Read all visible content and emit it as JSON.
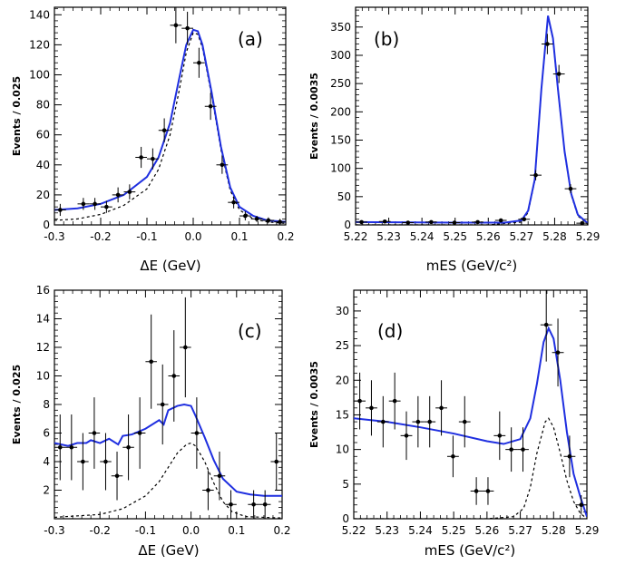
{
  "colors": {
    "fit": "#1f2fe0",
    "signal": "#000000",
    "points": "#000000"
  },
  "chart_data": [
    {
      "type": "scatter",
      "panel_label": "(a)",
      "xlabel": "ΔE (GeV)",
      "ylabel": "Events / 0.025",
      "xlim": [
        -0.3,
        0.2
      ],
      "ylim": [
        0,
        145
      ],
      "xticks": [
        -0.3,
        -0.2,
        -0.1,
        0.0,
        0.1,
        0.2
      ],
      "xtick_labels": [
        "-0.3",
        "-0.2",
        "-0.1",
        "0.0",
        "0.1",
        "0.2"
      ],
      "yticks": [
        0,
        20,
        40,
        60,
        80,
        100,
        120,
        140
      ],
      "ytick_labels": [
        "0",
        "20",
        "40",
        "60",
        "80",
        "100",
        "120",
        "140"
      ],
      "points": [
        {
          "x": -0.2875,
          "y": 10,
          "err": 4
        },
        {
          "x": -0.2375,
          "y": 14,
          "err": 4
        },
        {
          "x": -0.2125,
          "y": 14,
          "err": 4
        },
        {
          "x": -0.1875,
          "y": 12,
          "err": 4
        },
        {
          "x": -0.1625,
          "y": 20,
          "err": 5
        },
        {
          "x": -0.1375,
          "y": 22,
          "err": 5
        },
        {
          "x": -0.1125,
          "y": 45,
          "err": 7
        },
        {
          "x": -0.0875,
          "y": 44,
          "err": 7
        },
        {
          "x": -0.0625,
          "y": 63,
          "err": 8
        },
        {
          "x": -0.0375,
          "y": 133,
          "err": 12
        },
        {
          "x": -0.0125,
          "y": 131,
          "err": 11
        },
        {
          "x": 0.0125,
          "y": 108,
          "err": 10
        },
        {
          "x": 0.0375,
          "y": 79,
          "err": 9
        },
        {
          "x": 0.0625,
          "y": 40,
          "err": 6
        },
        {
          "x": 0.0875,
          "y": 15,
          "err": 4
        },
        {
          "x": 0.1125,
          "y": 6,
          "err": 3
        },
        {
          "x": 0.1375,
          "y": 4,
          "err": 2
        },
        {
          "x": 0.1625,
          "y": 3,
          "err": 2
        },
        {
          "x": 0.1875,
          "y": 2,
          "err": 2
        }
      ],
      "fit_curve": [
        [
          -0.3,
          10
        ],
        [
          -0.25,
          11
        ],
        [
          -0.2,
          14
        ],
        [
          -0.15,
          20
        ],
        [
          -0.1,
          32
        ],
        [
          -0.075,
          45
        ],
        [
          -0.05,
          68
        ],
        [
          -0.03,
          98
        ],
        [
          -0.015,
          120
        ],
        [
          0.0,
          130
        ],
        [
          0.01,
          129
        ],
        [
          0.02,
          120
        ],
        [
          0.04,
          88
        ],
        [
          0.06,
          52
        ],
        [
          0.08,
          25
        ],
        [
          0.1,
          12
        ],
        [
          0.13,
          6
        ],
        [
          0.16,
          3
        ],
        [
          0.2,
          2
        ]
      ],
      "signal_curve": [
        [
          -0.3,
          3
        ],
        [
          -0.25,
          4
        ],
        [
          -0.2,
          7
        ],
        [
          -0.15,
          13
        ],
        [
          -0.1,
          24
        ],
        [
          -0.075,
          37
        ],
        [
          -0.05,
          60
        ],
        [
          -0.03,
          90
        ],
        [
          -0.015,
          115
        ],
        [
          0.0,
          128
        ],
        [
          0.01,
          127
        ],
        [
          0.02,
          118
        ],
        [
          0.04,
          86
        ],
        [
          0.06,
          50
        ],
        [
          0.08,
          23
        ],
        [
          0.1,
          10
        ],
        [
          0.13,
          4
        ],
        [
          0.16,
          2
        ],
        [
          0.2,
          1
        ]
      ]
    },
    {
      "type": "scatter",
      "panel_label": "(b)",
      "xlabel": "mES (GeV/c²)",
      "ylabel": "Events / 0.0035",
      "xlim": [
        5.22,
        5.29
      ],
      "ylim": [
        0,
        385
      ],
      "xticks": [
        5.22,
        5.23,
        5.24,
        5.25,
        5.26,
        5.27,
        5.28,
        5.29
      ],
      "xtick_labels": [
        "5.22",
        "5.23",
        "5.24",
        "5.25",
        "5.26",
        "5.27",
        "5.28",
        "5.29"
      ],
      "yticks": [
        0,
        50,
        100,
        150,
        200,
        250,
        300,
        350
      ],
      "ytick_labels": [
        "0",
        "50",
        "100",
        "150",
        "200",
        "250",
        "300",
        "350"
      ],
      "points": [
        {
          "x": 5.2218,
          "y": 5,
          "err": 2
        },
        {
          "x": 5.2288,
          "y": 6,
          "err": 2
        },
        {
          "x": 5.2358,
          "y": 4,
          "err": 2
        },
        {
          "x": 5.2428,
          "y": 5,
          "err": 2
        },
        {
          "x": 5.2498,
          "y": 4,
          "err": 2
        },
        {
          "x": 5.2568,
          "y": 5,
          "err": 2
        },
        {
          "x": 5.2638,
          "y": 8,
          "err": 3
        },
        {
          "x": 5.2708,
          "y": 10,
          "err": 3
        },
        {
          "x": 5.2743,
          "y": 88,
          "err": 9
        },
        {
          "x": 5.2778,
          "y": 320,
          "err": 18
        },
        {
          "x": 5.2813,
          "y": 267,
          "err": 16
        },
        {
          "x": 5.2848,
          "y": 64,
          "err": 8
        },
        {
          "x": 5.2883,
          "y": 3,
          "err": 2
        }
      ],
      "fit_curve": [
        [
          5.22,
          5
        ],
        [
          5.25,
          4
        ],
        [
          5.265,
          4
        ],
        [
          5.27,
          8
        ],
        [
          5.272,
          25
        ],
        [
          5.274,
          80
        ],
        [
          5.276,
          240
        ],
        [
          5.278,
          370
        ],
        [
          5.2795,
          330
        ],
        [
          5.281,
          240
        ],
        [
          5.283,
          130
        ],
        [
          5.285,
          55
        ],
        [
          5.287,
          18
        ],
        [
          5.29,
          3
        ]
      ],
      "signal_curve": [
        [
          5.22,
          0
        ],
        [
          5.26,
          0
        ],
        [
          5.27,
          5
        ],
        [
          5.272,
          22
        ],
        [
          5.274,
          78
        ],
        [
          5.276,
          238
        ],
        [
          5.278,
          368
        ],
        [
          5.2795,
          328
        ],
        [
          5.281,
          238
        ],
        [
          5.283,
          128
        ],
        [
          5.285,
          53
        ],
        [
          5.287,
          16
        ],
        [
          5.29,
          1
        ]
      ]
    },
    {
      "type": "scatter",
      "panel_label": "(c)",
      "xlabel": "ΔE (GeV)",
      "ylabel": "Events / 0.025",
      "xlim": [
        -0.3,
        0.2
      ],
      "ylim": [
        0,
        16
      ],
      "xticks": [
        -0.3,
        -0.2,
        -0.1,
        0.0,
        0.1,
        0.2
      ],
      "xtick_labels": [
        "-0.3",
        "-0.2",
        "-0.1",
        "0.0",
        "0.1",
        "0.2"
      ],
      "yticks": [
        2,
        4,
        6,
        8,
        10,
        12,
        14,
        16
      ],
      "ytick_labels": [
        "2",
        "4",
        "6",
        "8",
        "10",
        "12",
        "14",
        "16"
      ],
      "points": [
        {
          "x": -0.2875,
          "y": 5,
          "err": 2.3
        },
        {
          "x": -0.2625,
          "y": 5,
          "err": 2.3
        },
        {
          "x": -0.2375,
          "y": 4,
          "err": 2.0
        },
        {
          "x": -0.2125,
          "y": 6,
          "err": 2.5
        },
        {
          "x": -0.1875,
          "y": 4,
          "err": 2.0
        },
        {
          "x": -0.1625,
          "y": 3,
          "err": 1.7
        },
        {
          "x": -0.1375,
          "y": 5,
          "err": 2.3
        },
        {
          "x": -0.1125,
          "y": 6,
          "err": 2.5
        },
        {
          "x": -0.0875,
          "y": 11,
          "err": 3.3
        },
        {
          "x": -0.0625,
          "y": 8,
          "err": 2.8
        },
        {
          "x": -0.0375,
          "y": 10,
          "err": 3.2
        },
        {
          "x": -0.0125,
          "y": 12,
          "err": 3.5
        },
        {
          "x": 0.0125,
          "y": 6,
          "err": 2.5
        },
        {
          "x": 0.0375,
          "y": 2,
          "err": 1.4
        },
        {
          "x": 0.0625,
          "y": 3,
          "err": 1.7
        },
        {
          "x": 0.0875,
          "y": 1,
          "err": 1.0
        },
        {
          "x": 0.1375,
          "y": 1,
          "err": 1.0
        },
        {
          "x": 0.1625,
          "y": 1,
          "err": 1.0
        },
        {
          "x": 0.1875,
          "y": 4,
          "err": 2.0
        }
      ],
      "fit_curve": [
        [
          -0.3,
          5.3
        ],
        [
          -0.27,
          5.1
        ],
        [
          -0.25,
          5.3
        ],
        [
          -0.23,
          5.3
        ],
        [
          -0.22,
          5.5
        ],
        [
          -0.2,
          5.3
        ],
        [
          -0.18,
          5.6
        ],
        [
          -0.16,
          5.2
        ],
        [
          -0.15,
          5.8
        ],
        [
          -0.13,
          5.9
        ],
        [
          -0.1,
          6.3
        ],
        [
          -0.07,
          6.9
        ],
        [
          -0.06,
          6.6
        ],
        [
          -0.05,
          7.6
        ],
        [
          -0.03,
          7.9
        ],
        [
          -0.015,
          8.0
        ],
        [
          0.0,
          7.9
        ],
        [
          0.01,
          7.2
        ],
        [
          0.03,
          5.7
        ],
        [
          0.05,
          4.1
        ],
        [
          0.07,
          2.8
        ],
        [
          0.1,
          1.9
        ],
        [
          0.13,
          1.7
        ],
        [
          0.16,
          1.6
        ],
        [
          0.2,
          1.6
        ]
      ],
      "signal_curve": [
        [
          -0.3,
          0.1
        ],
        [
          -0.2,
          0.3
        ],
        [
          -0.15,
          0.7
        ],
        [
          -0.1,
          1.6
        ],
        [
          -0.07,
          2.6
        ],
        [
          -0.05,
          3.6
        ],
        [
          -0.03,
          4.6
        ],
        [
          -0.01,
          5.2
        ],
        [
          0.0,
          5.3
        ],
        [
          0.01,
          5.1
        ],
        [
          0.03,
          4.0
        ],
        [
          0.05,
          2.5
        ],
        [
          0.07,
          1.2
        ],
        [
          0.09,
          0.5
        ],
        [
          0.12,
          0.15
        ],
        [
          0.2,
          0.05
        ]
      ]
    },
    {
      "type": "scatter",
      "panel_label": "(d)",
      "xlabel": "mES (GeV/c²)",
      "ylabel": "Events / 0.0035",
      "xlim": [
        5.22,
        5.29
      ],
      "ylim": [
        0,
        33
      ],
      "xticks": [
        5.22,
        5.23,
        5.24,
        5.25,
        5.26,
        5.27,
        5.28,
        5.29
      ],
      "xtick_labels": [
        "5.22",
        "5.23",
        "5.24",
        "5.25",
        "5.26",
        "5.27",
        "5.28",
        "5.29"
      ],
      "yticks": [
        0,
        5,
        10,
        15,
        20,
        25,
        30
      ],
      "ytick_labels": [
        "0",
        "5",
        "10",
        "15",
        "20",
        "25",
        "30"
      ],
      "points": [
        {
          "x": 5.2218,
          "y": 17,
          "err": 4.1
        },
        {
          "x": 5.2253,
          "y": 16,
          "err": 4.0
        },
        {
          "x": 5.2288,
          "y": 14,
          "err": 3.7
        },
        {
          "x": 5.2323,
          "y": 17,
          "err": 4.1
        },
        {
          "x": 5.2358,
          "y": 12,
          "err": 3.5
        },
        {
          "x": 5.2393,
          "y": 14,
          "err": 3.7
        },
        {
          "x": 5.2428,
          "y": 14,
          "err": 3.7
        },
        {
          "x": 5.2463,
          "y": 16,
          "err": 4.0
        },
        {
          "x": 5.2498,
          "y": 9,
          "err": 3.0
        },
        {
          "x": 5.2533,
          "y": 14,
          "err": 3.7
        },
        {
          "x": 5.2568,
          "y": 4,
          "err": 2.0
        },
        {
          "x": 5.2603,
          "y": 4,
          "err": 2.0
        },
        {
          "x": 5.2638,
          "y": 12,
          "err": 3.5
        },
        {
          "x": 5.2673,
          "y": 10,
          "err": 3.2
        },
        {
          "x": 5.2708,
          "y": 10,
          "err": 3.2
        },
        {
          "x": 5.2778,
          "y": 28,
          "err": 5.3
        },
        {
          "x": 5.2813,
          "y": 24,
          "err": 4.9
        },
        {
          "x": 5.2848,
          "y": 9,
          "err": 3.0
        },
        {
          "x": 5.2883,
          "y": 2,
          "err": 1.4
        }
      ],
      "fit_curve": [
        [
          5.22,
          14.5
        ],
        [
          5.23,
          14.0
        ],
        [
          5.24,
          13.2
        ],
        [
          5.25,
          12.3
        ],
        [
          5.26,
          11.2
        ],
        [
          5.265,
          10.8
        ],
        [
          5.27,
          11.5
        ],
        [
          5.273,
          14.5
        ],
        [
          5.275,
          19.5
        ],
        [
          5.277,
          25.5
        ],
        [
          5.2785,
          27.5
        ],
        [
          5.28,
          26
        ],
        [
          5.282,
          20
        ],
        [
          5.284,
          12.5
        ],
        [
          5.286,
          6.5
        ],
        [
          5.288,
          3.2
        ],
        [
          5.29,
          0.3
        ]
      ],
      "signal_curve": [
        [
          5.22,
          0
        ],
        [
          5.26,
          0
        ],
        [
          5.268,
          0.3
        ],
        [
          5.271,
          1.5
        ],
        [
          5.273,
          4.5
        ],
        [
          5.275,
          9.5
        ],
        [
          5.2775,
          14
        ],
        [
          5.2785,
          14.5
        ],
        [
          5.28,
          13.2
        ],
        [
          5.282,
          9.5
        ],
        [
          5.284,
          5.5
        ],
        [
          5.286,
          2.5
        ],
        [
          5.288,
          0.8
        ],
        [
          5.29,
          0
        ]
      ]
    }
  ]
}
